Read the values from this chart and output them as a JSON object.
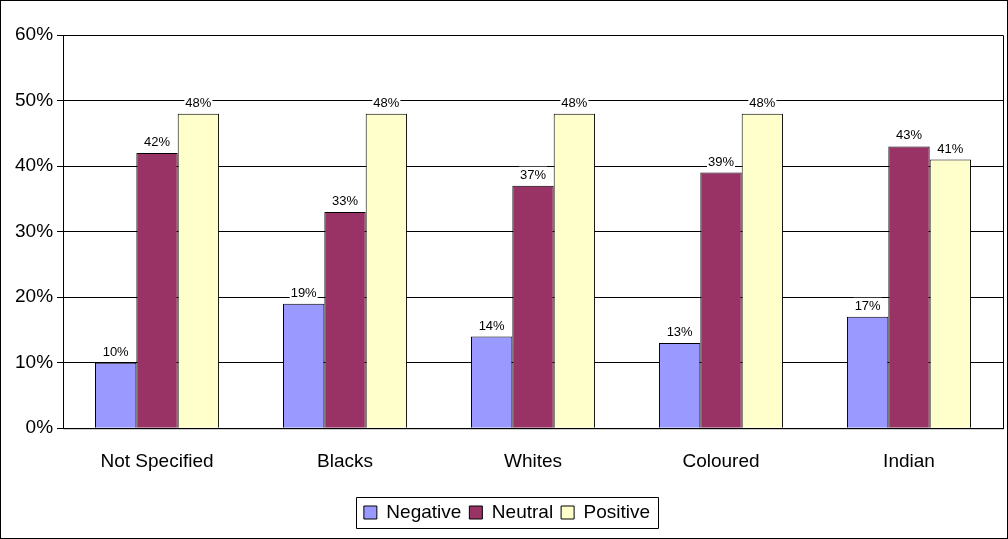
{
  "chart_data": {
    "type": "bar",
    "categories": [
      "Not Specified",
      "Blacks",
      "Whites",
      "Coloured",
      "Indian"
    ],
    "series": [
      {
        "name": "Negative",
        "color": "#9999ff",
        "values": [
          10,
          19,
          14,
          13,
          17
        ]
      },
      {
        "name": "Neutral",
        "color": "#993366",
        "values": [
          42,
          33,
          37,
          39,
          43
        ]
      },
      {
        "name": "Positive",
        "color": "#ffffcc",
        "values": [
          48,
          48,
          48,
          48,
          41
        ]
      }
    ],
    "ylim": [
      0,
      60
    ],
    "yticks": [
      {
        "value": 0,
        "label": "0%"
      },
      {
        "value": 10,
        "label": "10%"
      },
      {
        "value": 20,
        "label": "20%"
      },
      {
        "value": 30,
        "label": "30%"
      },
      {
        "value": 40,
        "label": "40%"
      },
      {
        "value": 50,
        "label": "50%"
      },
      {
        "value": 60,
        "label": "60%"
      }
    ],
    "value_labels": [
      [
        "10%",
        "19%",
        "14%",
        "13%",
        "17%"
      ],
      [
        "42%",
        "33%",
        "37%",
        "39%",
        "43%"
      ],
      [
        "48%",
        "48%",
        "48%",
        "48%",
        "41%"
      ]
    ],
    "grid": "y",
    "legend": "bottom"
  }
}
